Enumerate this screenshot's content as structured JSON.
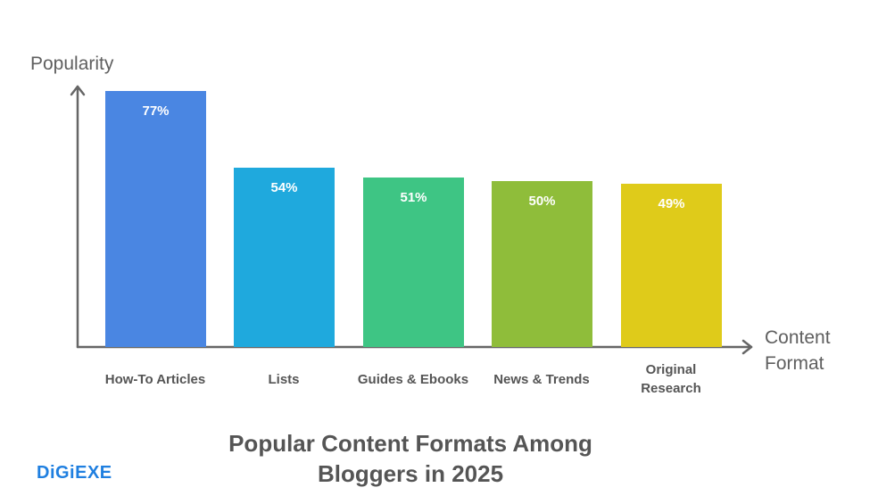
{
  "chart_data": {
    "type": "bar",
    "title": "Popular Content Formats Among Bloggers in 2025",
    "xlabel": "Content Format",
    "ylabel": "Popularity",
    "categories": [
      "How-To Articles",
      "Lists",
      "Guides & Ebooks",
      "News & Trends",
      "Original Research"
    ],
    "values": [
      77,
      54,
      51,
      50,
      49
    ],
    "value_labels": [
      "77%",
      "54%",
      "51%",
      "50%",
      "49%"
    ],
    "colors": [
      "#4a86e2",
      "#1fa9dd",
      "#3ec584",
      "#8fbd3a",
      "#dfcb1a"
    ],
    "ylim": [
      0,
      100
    ],
    "grid": false,
    "legend": null
  },
  "title_lines": [
    "Popular Content Formats Among",
    "Bloggers in 2025"
  ],
  "axis": {
    "y_label": "Popularity",
    "x_label_lines": [
      "Content",
      "Format"
    ]
  },
  "category_lines": [
    [
      "How-To Articles"
    ],
    [
      "Lists"
    ],
    [
      "Guides & Ebooks"
    ],
    [
      "News & Trends"
    ],
    [
      "Original",
      "Research"
    ]
  ],
  "brand": {
    "logo_text": "DiGiEXE",
    "color": "#1f7fe0"
  }
}
